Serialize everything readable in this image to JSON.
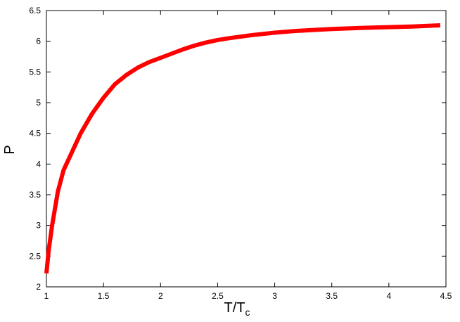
{
  "chart_data": {
    "type": "line",
    "title": "",
    "xlabel": "T/T",
    "xlabel_subscript": "c",
    "ylabel": "P",
    "xlim": [
      1,
      4.5
    ],
    "ylim": [
      2,
      6.5
    ],
    "grid": false,
    "xticks": [
      "1",
      "1.5",
      "2",
      "2.5",
      "3",
      "3.5",
      "4",
      "4.5"
    ],
    "yticks": [
      "2",
      "2.5",
      "3",
      "3.5",
      "4",
      "4.5",
      "5",
      "5.5",
      "6",
      "6.5"
    ],
    "series": [
      {
        "color": "#ff0000",
        "x": [
          1.0,
          1.02,
          1.05,
          1.1,
          1.15,
          1.2,
          1.3,
          1.4,
          1.5,
          1.6,
          1.7,
          1.8,
          1.9,
          2.0,
          2.1,
          2.2,
          2.3,
          2.4,
          2.5,
          2.6,
          2.8,
          3.0,
          3.2,
          3.5,
          3.8,
          4.0,
          4.2,
          4.45
        ],
        "y": [
          2.22,
          2.6,
          3.0,
          3.55,
          3.9,
          4.1,
          4.5,
          4.82,
          5.08,
          5.3,
          5.45,
          5.57,
          5.66,
          5.73,
          5.8,
          5.87,
          5.93,
          5.98,
          6.02,
          6.05,
          6.1,
          6.14,
          6.17,
          6.2,
          6.22,
          6.23,
          6.24,
          6.26
        ]
      }
    ]
  }
}
